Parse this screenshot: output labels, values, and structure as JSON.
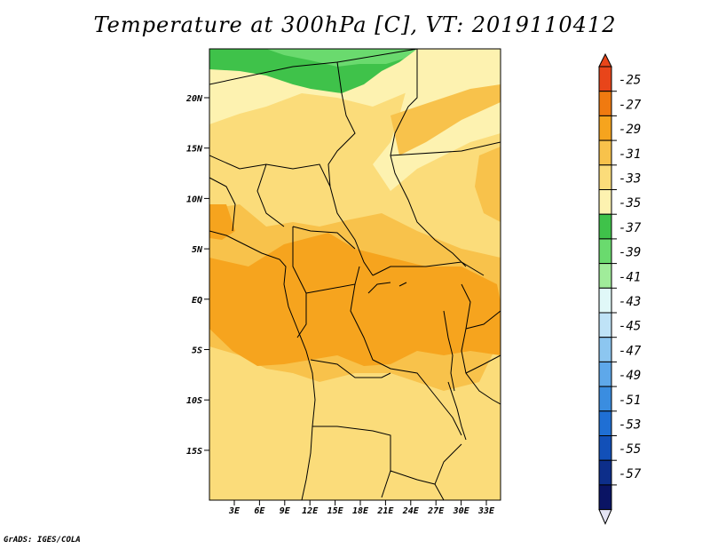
{
  "title": "Temperature at 300hPa [C], VT: 2019110412",
  "credit": "GrADS: IGES/COLA",
  "map": {
    "lat_labels": [
      "20N",
      "15N",
      "10N",
      "5N",
      "EQ",
      "5S",
      "10S",
      "15S"
    ],
    "lon_labels": [
      "3E",
      "6E",
      "9E",
      "12E",
      "15E",
      "18E",
      "21E",
      "24E",
      "27E",
      "30E",
      "33E"
    ]
  },
  "colorbar": {
    "labels": [
      "-25",
      "-27",
      "-29",
      "-31",
      "-33",
      "-35",
      "-37",
      "-39",
      "-41",
      "-43",
      "-45",
      "-47",
      "-49",
      "-51",
      "-53",
      "-55",
      "-57"
    ],
    "colors": [
      "#e8451a",
      "#f07a10",
      "#f6a41e",
      "#f8c24b",
      "#fbdc7a",
      "#fdf2b0",
      "#3fc24a",
      "#6ada6e",
      "#a0ec9a",
      "#e0f8f8",
      "#bfe3f7",
      "#8cc6f0",
      "#5ea8ea",
      "#3a8de0",
      "#1f6fd4",
      "#1250b8",
      "#0d2e8a",
      "#0a1464"
    ],
    "top_color": "#e8451a",
    "bottom_color": "#e4e4f4"
  },
  "field_colors": {
    "pale": "#fdf2b0",
    "light": "#fbdc7a",
    "mid": "#f8c24b",
    "warm": "#f6a41e",
    "green": "#3fc24a",
    "lightgreen": "#6ada6e"
  }
}
